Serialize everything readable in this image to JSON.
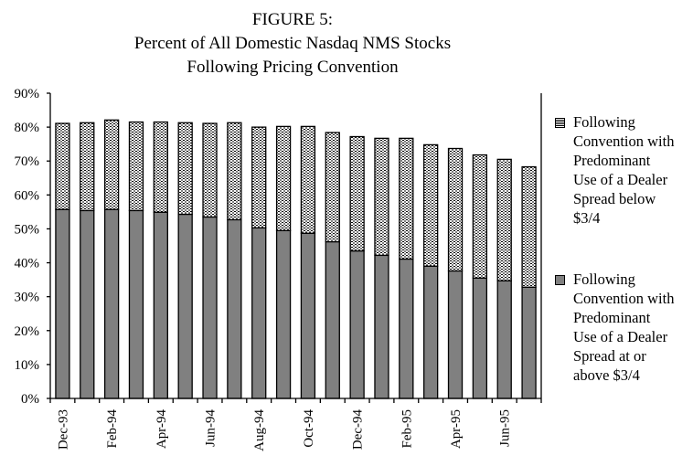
{
  "chart_data": {
    "type": "bar",
    "stacked": true,
    "title": [
      "FIGURE 5:",
      "Percent of All Domestic Nasdaq NMS Stocks",
      "Following Pricing Convention"
    ],
    "xlabel": "",
    "ylabel": "",
    "ylim": [
      0,
      90
    ],
    "yticks": [
      "0%",
      "10%",
      "20%",
      "30%",
      "40%",
      "50%",
      "60%",
      "70%",
      "80%",
      "90%"
    ],
    "grid": false,
    "legend_position": "right",
    "categories": [
      "Dec-93",
      "",
      "Feb-94",
      "",
      "Apr-94",
      "",
      "Jun-94",
      "",
      "Aug-94",
      "",
      "Oct-94",
      "",
      "Dec-94",
      "",
      "Feb-95",
      "",
      "Apr-95",
      "",
      "Jun-95",
      ""
    ],
    "series": [
      {
        "name": "Following Convention with Predominant Use of a Dealer Spread at or above $3/4",
        "color": "#808080",
        "fill": "solid",
        "values": [
          55.7,
          55.4,
          55.7,
          55.4,
          54.9,
          54.3,
          53.5,
          52.7,
          50.3,
          49.5,
          48.7,
          46.2,
          43.5,
          42.2,
          41.1,
          39.0,
          37.6,
          35.5,
          34.7,
          32.8
        ]
      },
      {
        "name": "Following Convention with Predominant Use of a Dealer Spread below $3/4",
        "color": "#ffffff",
        "fill": "dotted",
        "values": [
          25.4,
          25.9,
          26.4,
          26.1,
          26.6,
          27.0,
          27.6,
          28.6,
          29.7,
          30.7,
          31.5,
          32.2,
          33.7,
          34.5,
          35.6,
          35.8,
          36.1,
          36.3,
          35.8,
          35.5
        ]
      }
    ]
  },
  "legend": {
    "top_lines": [
      "Following",
      "Convention with",
      "Predominant",
      "Use of a Dealer",
      "Spread below",
      "$3/4"
    ],
    "bottom_lines": [
      "Following",
      "Convention with",
      "Predominant",
      "Use of a Dealer",
      "Spread at or",
      "above $3/4"
    ]
  }
}
